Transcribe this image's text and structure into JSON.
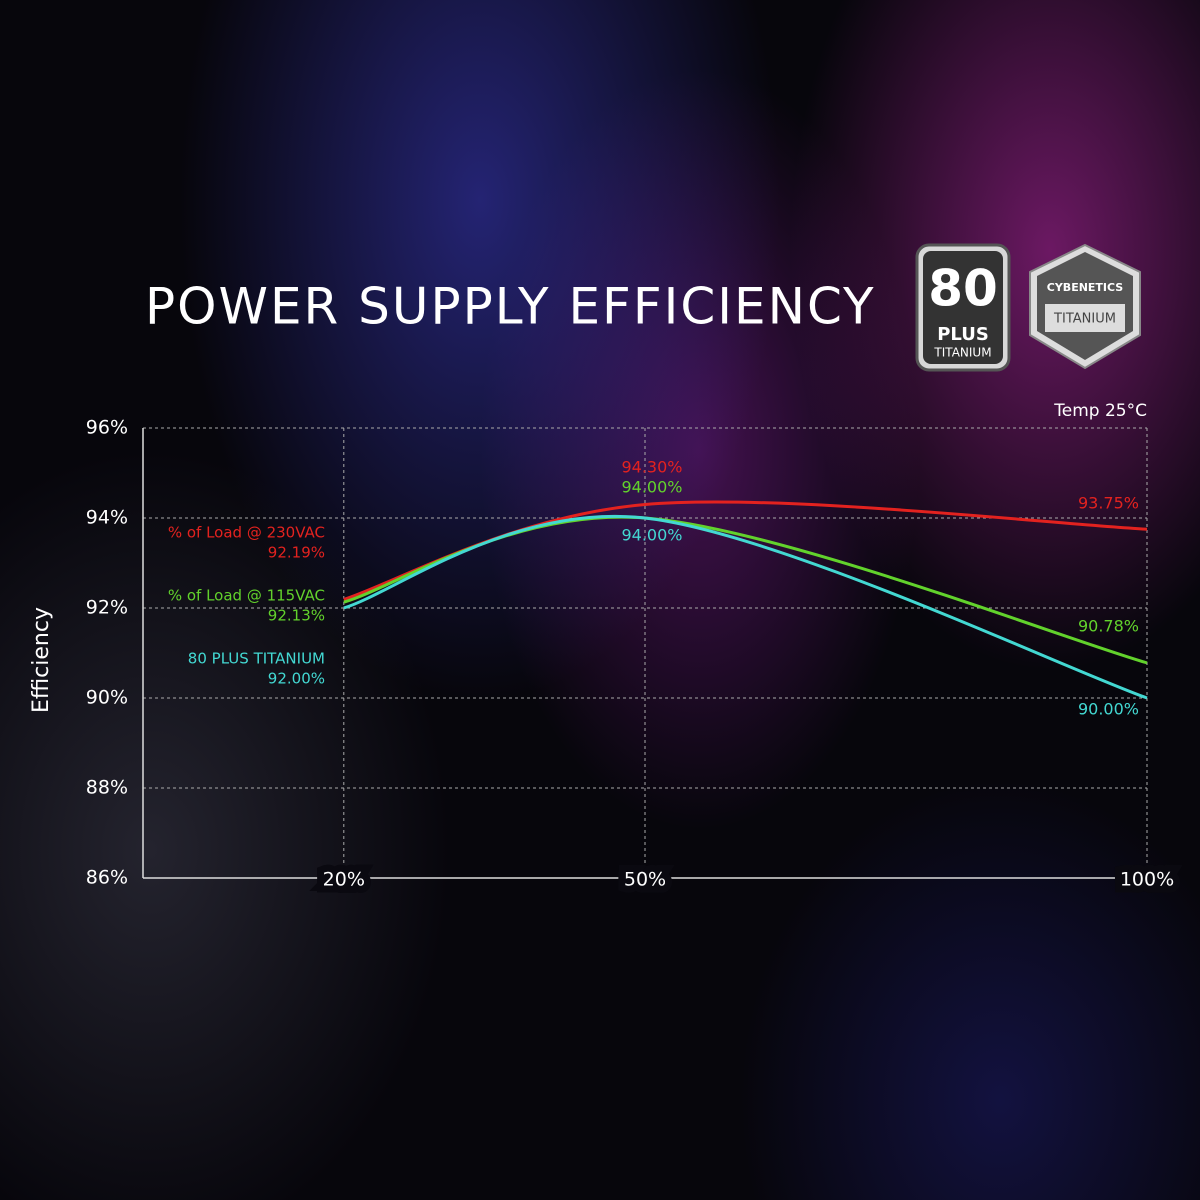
{
  "chart_data": {
    "type": "line",
    "title": "POWER SUPPLY EFFICIENCY",
    "y_label": "Efficiency",
    "annotation": "Temp 25°C",
    "x": [
      20,
      50,
      100
    ],
    "xlim": [
      0,
      100
    ],
    "xticks": [
      {
        "value": 20,
        "label": "20%"
      },
      {
        "value": 50,
        "label": "50%"
      },
      {
        "value": 100,
        "label": "100%"
      }
    ],
    "ylim": [
      86,
      96
    ],
    "yticks": [
      {
        "value": 86,
        "label": "86%"
      },
      {
        "value": 88,
        "label": "88%"
      },
      {
        "value": 90,
        "label": "90%"
      },
      {
        "value": 92,
        "label": "92%"
      },
      {
        "value": 94,
        "label": "94%"
      },
      {
        "value": 96,
        "label": "96%"
      }
    ],
    "grid": true,
    "series": [
      {
        "name": "% of Load @ 230VAC",
        "color": "#e3221f",
        "values": [
          92.19,
          94.3,
          93.75
        ],
        "value_labels": [
          "92.19%",
          "94.30%",
          "93.75%"
        ]
      },
      {
        "name": "% of Load @ 115VAC",
        "color": "#62d22c",
        "values": [
          92.13,
          94.0,
          90.78
        ],
        "value_labels": [
          "92.13%",
          "94.00%",
          "90.78%"
        ]
      },
      {
        "name": "80 PLUS TITANIUM",
        "color": "#43d8d2",
        "values": [
          92.0,
          94.0,
          90.0
        ],
        "value_labels": [
          "92.00%",
          "94.00%",
          "90.00%"
        ]
      }
    ]
  },
  "badges": {
    "plus_number": "80",
    "plus_word": "PLUS",
    "plus_level": "TITANIUM",
    "cyb_name": "CYBENETICS",
    "cyb_level": "TITANIUM"
  }
}
